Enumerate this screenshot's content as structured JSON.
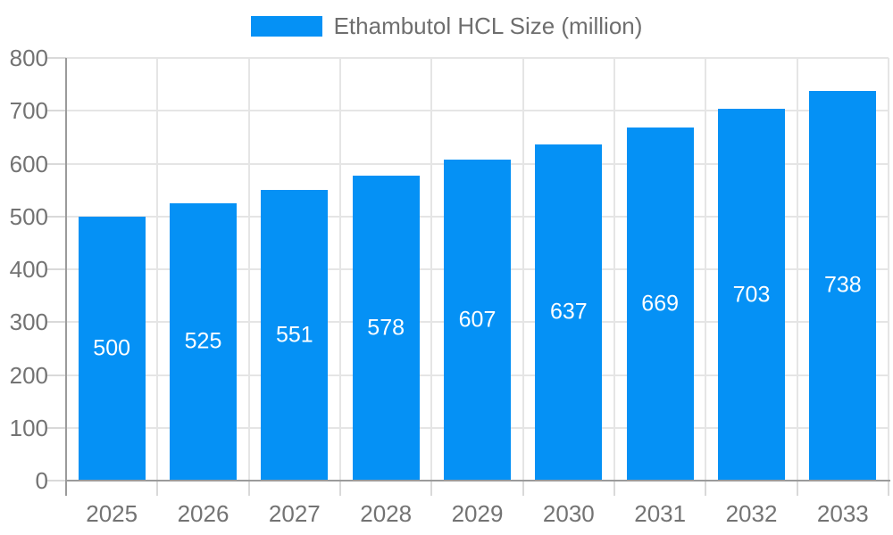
{
  "legend": {
    "label": "Ethambutol HCL Size (million)"
  },
  "colors": {
    "background": "#ffffff",
    "bar": "#0591F5",
    "grid": "#e5e5e5",
    "axis": "#9b9b9b",
    "tick": "#d9d9d9",
    "text": "#737373",
    "legend_text": "#6e6e6e",
    "bar_label": "#ffffff"
  },
  "chart_data": {
    "type": "bar",
    "title": "Ethambutol HCL Size (million)",
    "series_name": "Ethambutol HCL Size (million)",
    "categories": [
      "2025",
      "2026",
      "2027",
      "2028",
      "2029",
      "2030",
      "2031",
      "2032",
      "2033"
    ],
    "values": [
      500,
      525,
      551,
      578,
      607,
      637,
      669,
      703,
      738
    ],
    "xlabel": "",
    "ylabel": "",
    "ylim": [
      0,
      800
    ],
    "yticks": [
      "0",
      "100",
      "200",
      "300",
      "400",
      "500",
      "600",
      "700",
      "800"
    ],
    "grid": true,
    "legend_position": "top-center",
    "bar_labels_inside": true
  }
}
